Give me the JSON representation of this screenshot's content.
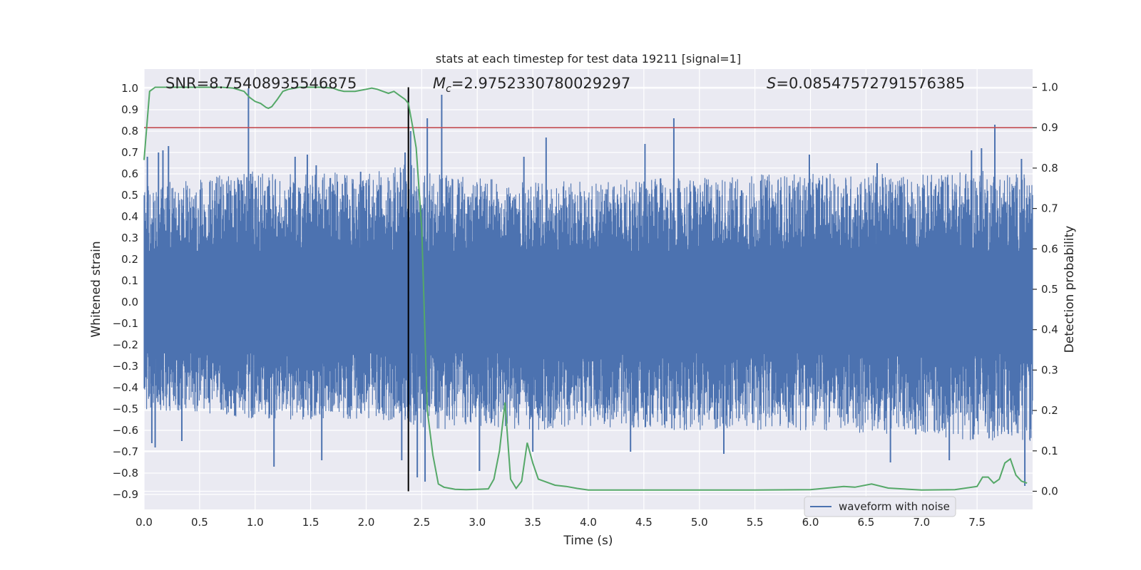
{
  "chart_data": {
    "type": "line",
    "title": "stats at each timestep for test data 19211 [signal=1]",
    "xlabel": "Time (s)",
    "ylabel": "Whitened strain",
    "y2label": "Detection probability",
    "xlim": [
      0,
      8
    ],
    "ylim": [
      -0.97,
      1.09
    ],
    "y2lim": [
      -0.045,
      1.045
    ],
    "x_ticks": [
      "0.0",
      "0.5",
      "1.0",
      "1.5",
      "2.0",
      "2.5",
      "3.0",
      "3.5",
      "4.0",
      "4.5",
      "5.0",
      "5.5",
      "6.0",
      "6.5",
      "7.0",
      "7.5"
    ],
    "y_ticks": [
      "1.0",
      "0.9",
      "0.8",
      "0.7",
      "0.6",
      "0.5",
      "0.4",
      "0.3",
      "0.2",
      "0.1",
      "0.0",
      "−0.1",
      "−0.2",
      "−0.3",
      "−0.4",
      "−0.5",
      "−0.6",
      "−0.7",
      "−0.8",
      "−0.9"
    ],
    "y2_ticks": [
      "1.0",
      "0.9",
      "0.8",
      "0.7",
      "0.6",
      "0.5",
      "0.4",
      "0.3",
      "0.2",
      "0.1",
      "0.0"
    ],
    "grid": true,
    "legend_position": "bottom-right",
    "annotations": {
      "snr_text": "SNR=8.75408935546875",
      "mc_symbol": "M",
      "mc_subscript": "c",
      "mc_value": "=2.9752330780029297",
      "s_symbol": "S",
      "s_value": "=0.08547572791576385"
    },
    "threshold_probability": 0.9,
    "marker_time": 2.38,
    "series": [
      {
        "name": "waveform with noise",
        "axis": "left",
        "color": "#4c72b0",
        "envelope": {
          "t": [
            0,
            0.5,
            1.0,
            1.5,
            2.0,
            2.38,
            2.6,
            3.0,
            3.5,
            4.0,
            4.5,
            5.0,
            5.5,
            6.0,
            6.5,
            7.0,
            7.5,
            8.0
          ],
          "upper": [
            0.55,
            0.58,
            0.62,
            0.6,
            0.62,
            0.65,
            0.6,
            0.58,
            0.56,
            0.57,
            0.58,
            0.58,
            0.6,
            0.6,
            0.6,
            0.6,
            0.62,
            0.6
          ],
          "lower": [
            -0.5,
            -0.52,
            -0.55,
            -0.55,
            -0.55,
            -0.58,
            -0.6,
            -0.58,
            -0.6,
            -0.58,
            -0.6,
            -0.6,
            -0.6,
            -0.6,
            -0.62,
            -0.62,
            -0.65,
            -0.65
          ]
        },
        "peaks": [
          {
            "t": 0.03,
            "v": 0.68
          },
          {
            "t": 0.13,
            "v": 0.7
          },
          {
            "t": 0.17,
            "v": 0.71
          },
          {
            "t": 0.22,
            "v": 0.73
          },
          {
            "t": 0.94,
            "v": 1.0
          },
          {
            "t": 0.96,
            "v": 0.6
          },
          {
            "t": 1.36,
            "v": 0.68
          },
          {
            "t": 1.47,
            "v": 0.69
          },
          {
            "t": 1.55,
            "v": 0.64
          },
          {
            "t": 1.95,
            "v": 0.61
          },
          {
            "t": 2.35,
            "v": 0.7
          },
          {
            "t": 2.4,
            "v": 0.8
          },
          {
            "t": 2.55,
            "v": 0.86
          },
          {
            "t": 2.68,
            "v": 0.97
          },
          {
            "t": 3.42,
            "v": 0.68
          },
          {
            "t": 3.62,
            "v": 0.77
          },
          {
            "t": 4.51,
            "v": 0.74
          },
          {
            "t": 4.77,
            "v": 0.86
          },
          {
            "t": 5.99,
            "v": 0.69
          },
          {
            "t": 6.6,
            "v": 0.65
          },
          {
            "t": 7.45,
            "v": 0.71
          },
          {
            "t": 7.54,
            "v": 0.72
          },
          {
            "t": 7.66,
            "v": 0.83
          },
          {
            "t": 7.9,
            "v": 0.67
          }
        ],
        "troughs": [
          {
            "t": 0.07,
            "v": -0.66
          },
          {
            "t": 0.1,
            "v": -0.68
          },
          {
            "t": 0.34,
            "v": -0.65
          },
          {
            "t": 1.17,
            "v": -0.77
          },
          {
            "t": 1.6,
            "v": -0.74
          },
          {
            "t": 2.32,
            "v": -0.74
          },
          {
            "t": 2.46,
            "v": -0.82
          },
          {
            "t": 2.53,
            "v": -0.84
          },
          {
            "t": 3.02,
            "v": -0.79
          },
          {
            "t": 3.5,
            "v": -0.7
          },
          {
            "t": 4.38,
            "v": -0.7
          },
          {
            "t": 5.22,
            "v": -0.71
          },
          {
            "t": 6.72,
            "v": -0.75
          },
          {
            "t": 7.25,
            "v": -0.74
          },
          {
            "t": 7.93,
            "v": -0.86
          }
        ]
      },
      {
        "name": "Detection probability",
        "axis": "right",
        "color": "#55a868",
        "t": [
          0.0,
          0.05,
          0.1,
          0.2,
          0.3,
          0.5,
          0.7,
          0.8,
          0.9,
          0.95,
          1.0,
          1.05,
          1.1,
          1.12,
          1.15,
          1.2,
          1.25,
          1.3,
          1.4,
          1.5,
          1.6,
          1.7,
          1.75,
          1.8,
          1.9,
          2.0,
          2.05,
          2.1,
          2.15,
          2.2,
          2.25,
          2.3,
          2.35,
          2.38,
          2.42,
          2.45,
          2.5,
          2.55,
          2.6,
          2.65,
          2.7,
          2.8,
          2.9,
          3.0,
          3.1,
          3.15,
          3.2,
          3.25,
          3.3,
          3.35,
          3.4,
          3.45,
          3.5,
          3.55,
          3.6,
          3.7,
          3.8,
          3.9,
          4.0,
          4.5,
          5.0,
          5.5,
          6.0,
          6.3,
          6.4,
          6.55,
          6.7,
          7.0,
          7.3,
          7.5,
          7.55,
          7.6,
          7.65,
          7.7,
          7.75,
          7.8,
          7.85,
          7.9,
          7.95
        ],
        "values": [
          0.82,
          0.99,
          1.0,
          1.0,
          1.0,
          1.0,
          1.0,
          0.998,
          0.99,
          0.975,
          0.965,
          0.96,
          0.95,
          0.948,
          0.952,
          0.97,
          0.99,
          0.995,
          1.0,
          1.0,
          1.0,
          0.998,
          0.993,
          0.99,
          0.99,
          0.995,
          0.998,
          0.995,
          0.99,
          0.985,
          0.99,
          0.98,
          0.97,
          0.96,
          0.9,
          0.85,
          0.65,
          0.2,
          0.09,
          0.018,
          0.01,
          0.005,
          0.004,
          0.005,
          0.006,
          0.03,
          0.1,
          0.22,
          0.03,
          0.007,
          0.025,
          0.12,
          0.07,
          0.03,
          0.025,
          0.015,
          0.012,
          0.007,
          0.003,
          0.003,
          0.003,
          0.003,
          0.004,
          0.012,
          0.01,
          0.018,
          0.008,
          0.003,
          0.004,
          0.012,
          0.035,
          0.035,
          0.02,
          0.03,
          0.07,
          0.08,
          0.04,
          0.025,
          0.02
        ]
      }
    ]
  },
  "legend": {
    "label": "waveform with noise"
  },
  "colors": {
    "plot_background": "#eaeaf2",
    "grid": "#ffffff",
    "waveform": "#4c72b0",
    "probability": "#55a868",
    "threshold": "#c44e52",
    "marker": "#000000"
  }
}
